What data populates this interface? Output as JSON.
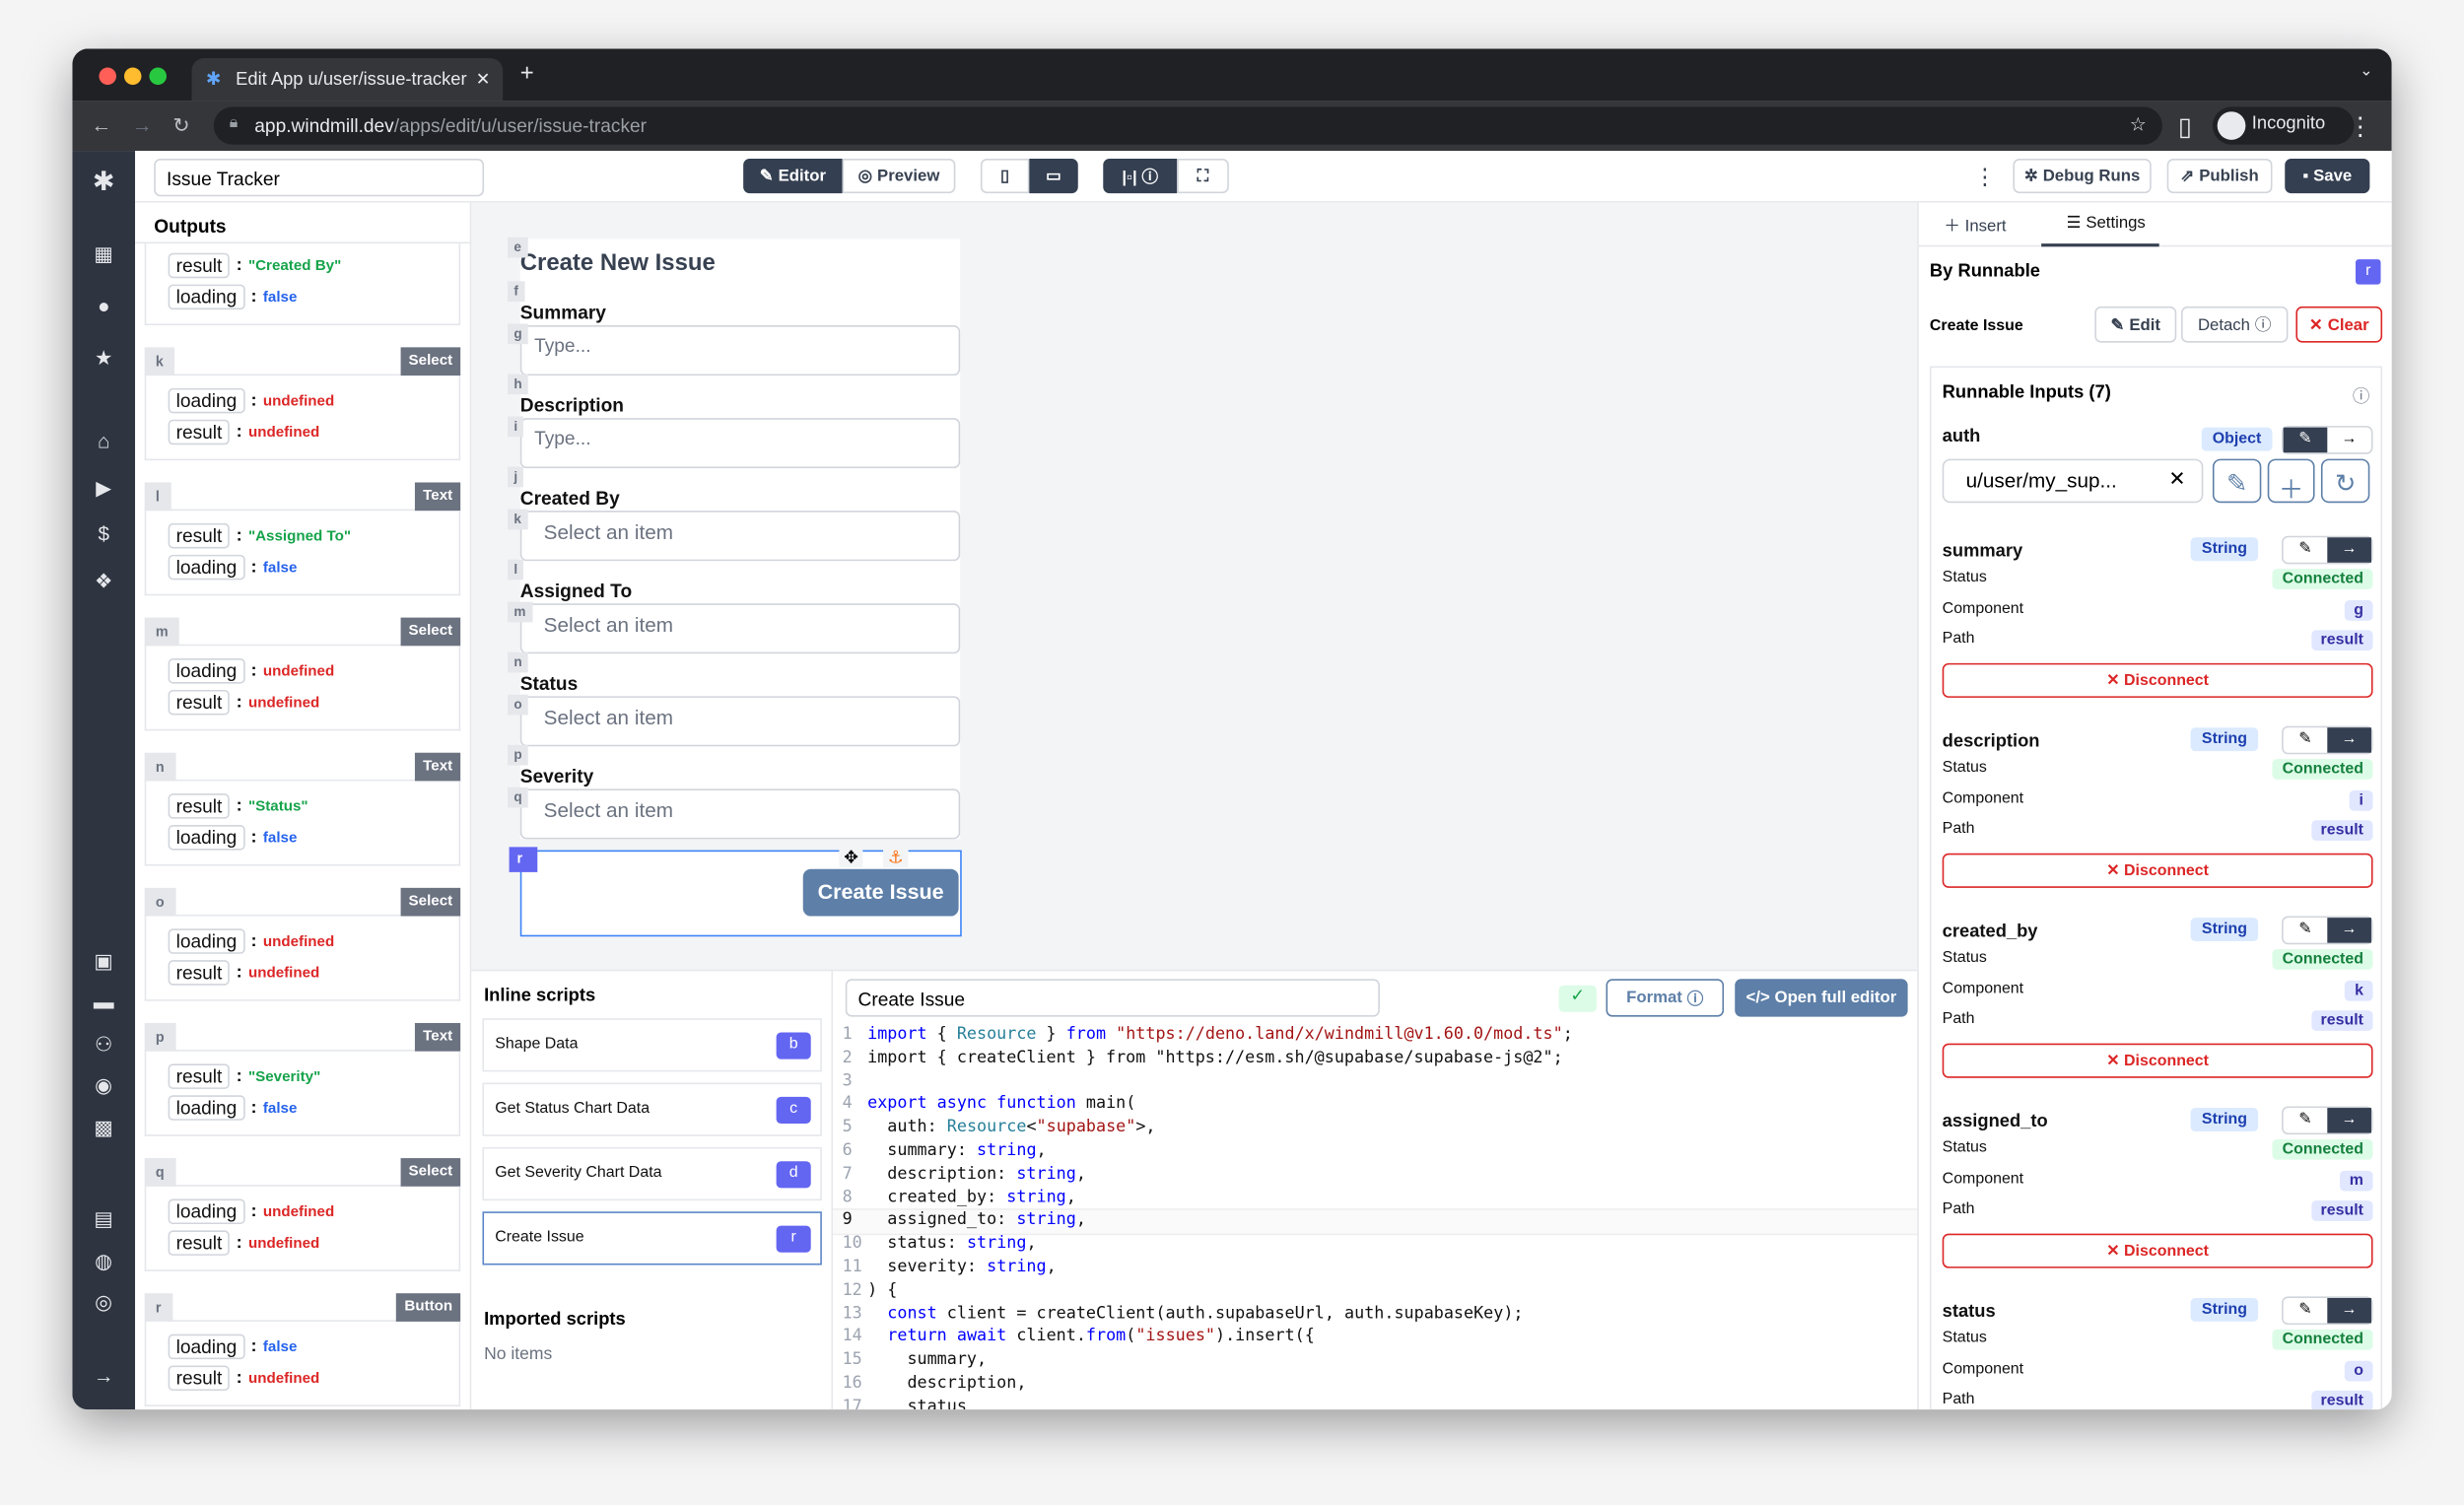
{
  "browser": {
    "tab_title": "Edit App u/user/issue-tracker",
    "url_host": "app.windmill.dev",
    "url_path": "/apps/edit/u/user/issue-tracker",
    "profile": "Incognito"
  },
  "header": {
    "app_name": "Issue Tracker",
    "editor": "Editor",
    "preview": "Preview",
    "debug_runs": "Debug Runs",
    "publish": "Publish",
    "save": "Save"
  },
  "outputs": {
    "title": "Outputs",
    "groups": [
      {
        "id": "",
        "type": "",
        "rows": [
          {
            "k": "result",
            "v": "\"Created By\"",
            "t": "str"
          },
          {
            "k": "loading",
            "v": "false",
            "t": "bool"
          }
        ]
      },
      {
        "id": "k",
        "type": "Select",
        "rows": [
          {
            "k": "loading",
            "v": "undefined",
            "t": "undef"
          },
          {
            "k": "result",
            "v": "undefined",
            "t": "undef"
          }
        ]
      },
      {
        "id": "l",
        "type": "Text",
        "rows": [
          {
            "k": "result",
            "v": "\"Assigned To\"",
            "t": "str"
          },
          {
            "k": "loading",
            "v": "false",
            "t": "bool"
          }
        ]
      },
      {
        "id": "m",
        "type": "Select",
        "rows": [
          {
            "k": "loading",
            "v": "undefined",
            "t": "undef"
          },
          {
            "k": "result",
            "v": "undefined",
            "t": "undef"
          }
        ]
      },
      {
        "id": "n",
        "type": "Text",
        "rows": [
          {
            "k": "result",
            "v": "\"Status\"",
            "t": "str"
          },
          {
            "k": "loading",
            "v": "false",
            "t": "bool"
          }
        ]
      },
      {
        "id": "o",
        "type": "Select",
        "rows": [
          {
            "k": "loading",
            "v": "undefined",
            "t": "undef"
          },
          {
            "k": "result",
            "v": "undefined",
            "t": "undef"
          }
        ]
      },
      {
        "id": "p",
        "type": "Text",
        "rows": [
          {
            "k": "result",
            "v": "\"Severity\"",
            "t": "str"
          },
          {
            "k": "loading",
            "v": "false",
            "t": "bool"
          }
        ]
      },
      {
        "id": "q",
        "type": "Select",
        "rows": [
          {
            "k": "loading",
            "v": "undefined",
            "t": "undef"
          },
          {
            "k": "result",
            "v": "undefined",
            "t": "undef"
          }
        ]
      },
      {
        "id": "r",
        "type": "Button",
        "rows": [
          {
            "k": "loading",
            "v": "false",
            "t": "bool"
          },
          {
            "k": "result",
            "v": "undefined",
            "t": "undef"
          }
        ]
      }
    ]
  },
  "canvas": {
    "items": [
      {
        "id": "e",
        "kind": "title",
        "text": "Create New Issue"
      },
      {
        "id": "f",
        "kind": "label",
        "text": "Summary"
      },
      {
        "id": "g",
        "kind": "input",
        "text": "Type..."
      },
      {
        "id": "h",
        "kind": "label",
        "text": "Description"
      },
      {
        "id": "i",
        "kind": "input",
        "text": "Type..."
      },
      {
        "id": "j",
        "kind": "label",
        "text": "Created By"
      },
      {
        "id": "k",
        "kind": "select",
        "text": "Select an item"
      },
      {
        "id": "l",
        "kind": "label",
        "text": "Assigned To"
      },
      {
        "id": "m",
        "kind": "select",
        "text": "Select an item"
      },
      {
        "id": "n",
        "kind": "label",
        "text": "Status"
      },
      {
        "id": "o",
        "kind": "select",
        "text": "Select an item"
      },
      {
        "id": "p",
        "kind": "label",
        "text": "Severity"
      },
      {
        "id": "q",
        "kind": "select",
        "text": "Select an item"
      }
    ],
    "button": {
      "id": "r",
      "text": "Create Issue"
    }
  },
  "scripts": {
    "inline_title": "Inline scripts",
    "inline": [
      {
        "name": "Shape Data",
        "id": "b"
      },
      {
        "name": "Get Status Chart Data",
        "id": "c"
      },
      {
        "name": "Get Severity Chart Data",
        "id": "d"
      },
      {
        "name": "Create Issue",
        "id": "r"
      }
    ],
    "imported_title": "Imported scripts",
    "imported_empty": "No items"
  },
  "editor": {
    "script_name": "Create Issue",
    "format": "Format",
    "open_full": "Open full editor",
    "lines": [
      "import { Resource } from \"https://deno.land/x/windmill@v1.60.0/mod.ts\";",
      "import { createClient } from \"https://esm.sh/@supabase/supabase-js@2\";",
      "",
      "export async function main(",
      "  auth: Resource<\"supabase\">,",
      "  summary: string,",
      "  description: string,",
      "  created_by: string,",
      "  assigned_to: string,",
      "  status: string,",
      "  severity: string,",
      ") {",
      "  const client = createClient(auth.supabaseUrl, auth.supabaseKey);",
      "  return await client.from(\"issues\").insert({",
      "    summary,",
      "    description,",
      "    status"
    ]
  },
  "settings": {
    "tab_insert": "Insert",
    "tab_settings": "Settings",
    "by_runnable": "By Runnable",
    "badge": "r",
    "runnable_name": "Create Issue",
    "edit": "Edit",
    "detach": "Detach",
    "clear": "Clear",
    "inputs_title": "Runnable Inputs (7)",
    "auth": {
      "name": "auth",
      "type": "Object",
      "value": "u/user/my_sup..."
    },
    "labels": {
      "status": "Status",
      "component": "Component",
      "path": "Path",
      "disconnect": "Disconnect"
    },
    "inputs": [
      {
        "name": "summary",
        "type": "String",
        "status": "Connected",
        "component": "g",
        "path": "result"
      },
      {
        "name": "description",
        "type": "String",
        "status": "Connected",
        "component": "i",
        "path": "result"
      },
      {
        "name": "created_by",
        "type": "String",
        "status": "Connected",
        "component": "k",
        "path": "result"
      },
      {
        "name": "assigned_to",
        "type": "String",
        "status": "Connected",
        "component": "m",
        "path": "result"
      },
      {
        "name": "status",
        "type": "String",
        "status": "Connected",
        "component": "o",
        "path": "result"
      }
    ]
  }
}
